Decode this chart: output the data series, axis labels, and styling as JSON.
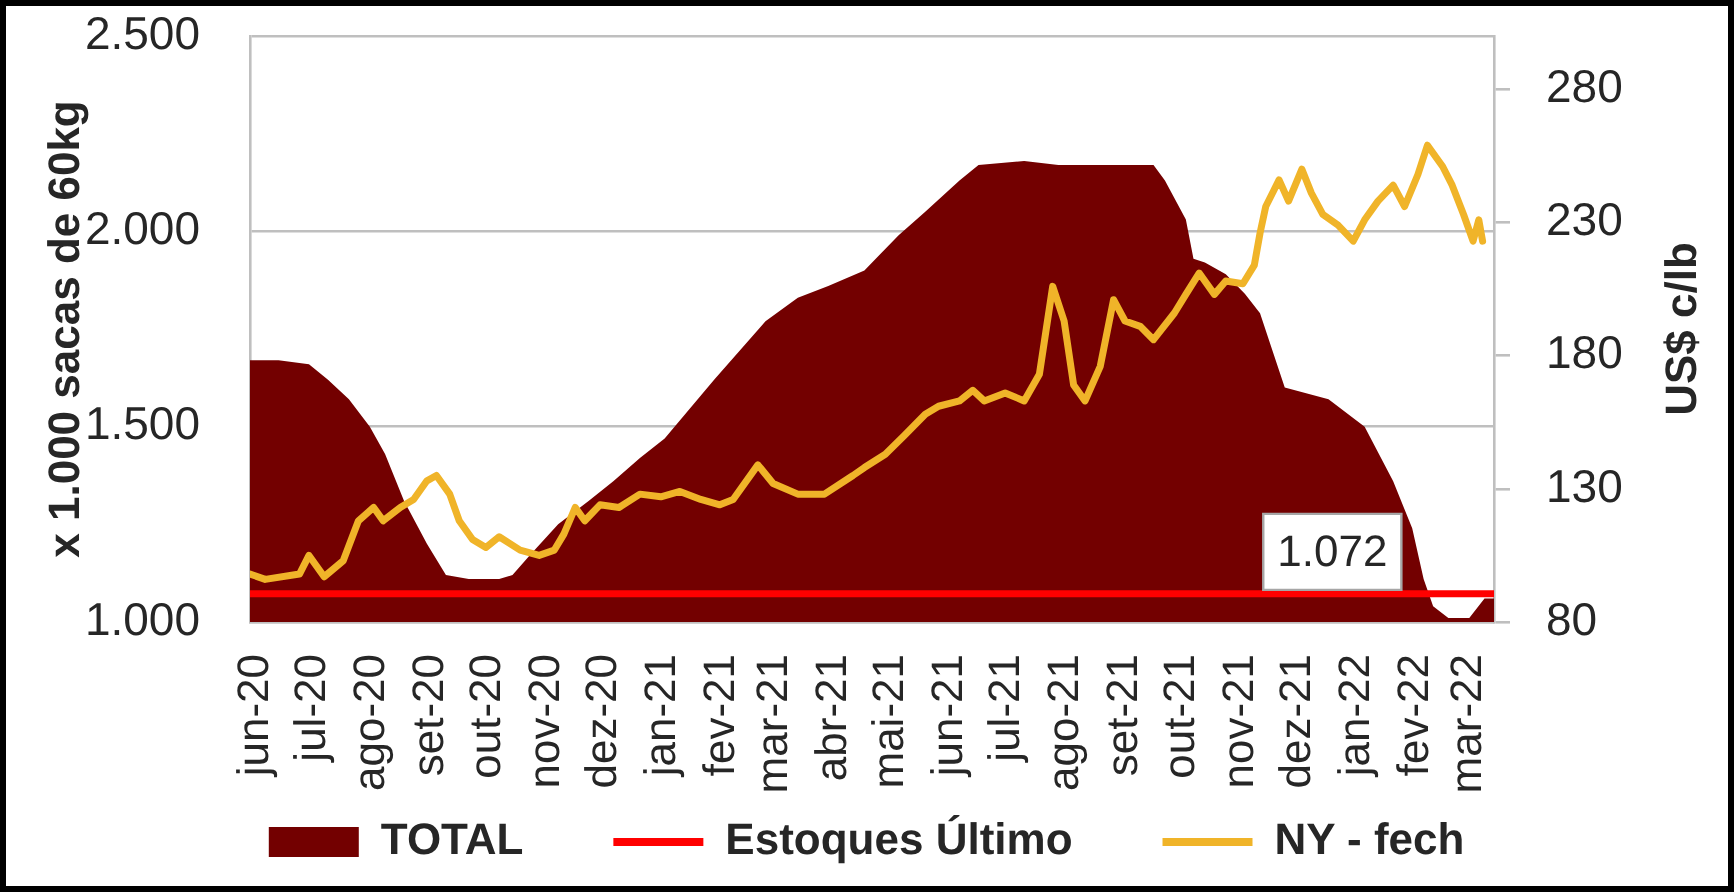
{
  "chart_data": {
    "type": "area",
    "ylabel": "x 1.000 sacas de 60kg",
    "y2label": "US$ c/lb",
    "xlim": [
      "2020-05-29",
      "2022-03-14"
    ],
    "xticks": [
      {
        "value": "2020-06-01",
        "label": "jun-20"
      },
      {
        "value": "2020-07-01",
        "label": "jul-20"
      },
      {
        "value": "2020-08-01",
        "label": "ago-20"
      },
      {
        "value": "2020-09-01",
        "label": "set-20"
      },
      {
        "value": "2020-10-01",
        "label": "out-20"
      },
      {
        "value": "2020-11-01",
        "label": "nov-20"
      },
      {
        "value": "2020-12-01",
        "label": "dez-20"
      },
      {
        "value": "2021-01-01",
        "label": "jan-21"
      },
      {
        "value": "2021-02-01",
        "label": "fev-21"
      },
      {
        "value": "2021-03-01",
        "label": "mar-21"
      },
      {
        "value": "2021-04-01",
        "label": "abr-21"
      },
      {
        "value": "2021-05-01",
        "label": "mai-21"
      },
      {
        "value": "2021-06-01",
        "label": "jun-21"
      },
      {
        "value": "2021-07-01",
        "label": "jul-21"
      },
      {
        "value": "2021-08-01",
        "label": "ago-21"
      },
      {
        "value": "2021-09-01",
        "label": "set-21"
      },
      {
        "value": "2021-10-01",
        "label": "out-21"
      },
      {
        "value": "2021-11-01",
        "label": "nov-21"
      },
      {
        "value": "2021-12-01",
        "label": "dez-21"
      },
      {
        "value": "2022-01-01",
        "label": "jan-22"
      },
      {
        "value": "2022-02-01",
        "label": "fev-22"
      },
      {
        "value": "2022-03-01",
        "label": "mar-22"
      }
    ],
    "ylim": [
      1000,
      2500
    ],
    "yticks": [
      {
        "value": 1000,
        "label": "1.000"
      },
      {
        "value": 1500,
        "label": "1.500"
      },
      {
        "value": 2000,
        "label": "2.000"
      },
      {
        "value": 2500,
        "label": "2.500"
      }
    ],
    "y2lim": [
      80,
      300
    ],
    "y2ticks": [
      80,
      130,
      180,
      230,
      280
    ],
    "series": [
      {
        "name": "TOTAL",
        "type": "area",
        "color": "#730000",
        "x": [
          "2020-05-29",
          "2020-06-13",
          "2020-06-29",
          "2020-07-09",
          "2020-07-20",
          "2020-07-31",
          "2020-08-08",
          "2020-08-18",
          "2020-08-30",
          "2020-09-09",
          "2020-09-21",
          "2020-10-07",
          "2020-10-14",
          "2020-10-23",
          "2020-11-07",
          "2020-11-23",
          "2020-12-06",
          "2020-12-20",
          "2021-01-02",
          "2021-01-28",
          "2021-02-24",
          "2021-03-13",
          "2021-03-29",
          "2021-04-17",
          "2021-05-05",
          "2021-05-19",
          "2021-06-06",
          "2021-06-16",
          "2021-07-10",
          "2021-07-28",
          "2021-08-15",
          "2021-09-16",
          "2021-09-22",
          "2021-10-03",
          "2021-10-07",
          "2021-10-13",
          "2021-10-24",
          "2021-11-03",
          "2021-11-11",
          "2021-11-24",
          "2021-12-17",
          "2022-01-05",
          "2022-01-20",
          "2022-01-30",
          "2022-02-05",
          "2022-02-10",
          "2022-02-18",
          "2022-03-01",
          "2022-03-09",
          "2022-03-14"
        ],
        "values": [
          1670,
          1670,
          1660,
          1620,
          1570,
          1500,
          1430,
          1310,
          1200,
          1120,
          1110,
          1110,
          1120,
          1170,
          1250,
          1310,
          1360,
          1420,
          1470,
          1620,
          1770,
          1830,
          1860,
          1900,
          1990,
          2050,
          2130,
          2170,
          2180,
          2170,
          2170,
          2170,
          2130,
          2030,
          1930,
          1920,
          1890,
          1840,
          1790,
          1600,
          1570,
          1500,
          1360,
          1240,
          1110,
          1040,
          1010,
          1010,
          1060,
          1060
        ]
      },
      {
        "name": "Estoques Último",
        "type": "line",
        "color": "#ff0000",
        "x": [
          "2020-05-29",
          "2021-12-19",
          "2022-03-14"
        ],
        "values": [
          1072,
          1072,
          1072
        ],
        "value_labels": [
          null,
          "1.072",
          null
        ]
      },
      {
        "name": "NY - fech",
        "type": "line",
        "axis": "y2",
        "color": "#f0b429",
        "x": [
          "2020-05-29",
          "2020-06-06",
          "2020-06-24",
          "2020-06-29",
          "2020-07-07",
          "2020-07-17",
          "2020-07-25",
          "2020-08-02",
          "2020-08-07",
          "2020-08-16",
          "2020-08-23",
          "2020-08-30",
          "2020-09-04",
          "2020-09-11",
          "2020-09-16",
          "2020-09-23",
          "2020-09-30",
          "2020-10-07",
          "2020-10-18",
          "2020-10-28",
          "2020-11-05",
          "2020-11-10",
          "2020-11-16",
          "2020-11-21",
          "2020-11-29",
          "2020-12-09",
          "2020-12-20",
          "2020-12-31",
          "2021-01-10",
          "2021-01-21",
          "2021-01-31",
          "2021-02-07",
          "2021-02-20",
          "2021-02-28",
          "2021-03-13",
          "2021-03-27",
          "2021-04-11",
          "2021-04-17",
          "2021-04-28",
          "2021-05-08",
          "2021-05-19",
          "2021-05-26",
          "2021-06-06",
          "2021-06-13",
          "2021-06-19",
          "2021-06-30",
          "2021-07-10",
          "2021-07-18",
          "2021-07-25",
          "2021-07-31",
          "2021-08-05",
          "2021-08-11",
          "2021-08-19",
          "2021-08-26",
          "2021-09-01",
          "2021-09-09",
          "2021-09-16",
          "2021-09-27",
          "2021-10-03",
          "2021-10-10",
          "2021-10-18",
          "2021-10-24",
          "2021-11-02",
          "2021-11-08",
          "2021-11-11",
          "2021-11-14",
          "2021-11-21",
          "2021-11-26",
          "2021-12-03",
          "2021-12-08",
          "2021-12-14",
          "2021-12-22",
          "2021-12-30",
          "2022-01-05",
          "2022-01-12",
          "2022-01-20",
          "2022-01-26",
          "2022-02-02",
          "2022-02-07",
          "2022-02-15",
          "2022-02-20",
          "2022-02-26",
          "2022-03-03",
          "2022-03-06",
          "2022-03-08"
        ],
        "values": [
          98,
          96,
          98,
          105,
          97,
          103,
          118,
          123,
          118,
          123,
          126,
          133,
          135,
          128,
          118,
          111,
          108,
          112,
          107,
          105,
          107,
          113,
          123,
          118,
          124,
          123,
          128,
          127,
          129,
          126,
          124,
          126,
          139,
          132,
          128,
          128,
          135,
          138,
          143,
          150,
          158,
          161,
          163,
          167,
          163,
          166,
          163,
          173,
          206,
          193,
          169,
          163,
          176,
          201,
          193,
          191,
          186,
          196,
          203,
          211,
          203,
          208,
          207,
          214,
          226,
          236,
          246,
          238,
          250,
          241,
          233,
          229,
          223,
          231,
          238,
          244,
          236,
          248,
          259,
          251,
          244,
          233,
          223,
          231,
          223
        ]
      }
    ],
    "grid": "y",
    "legend": "bottom",
    "marker": "none"
  }
}
